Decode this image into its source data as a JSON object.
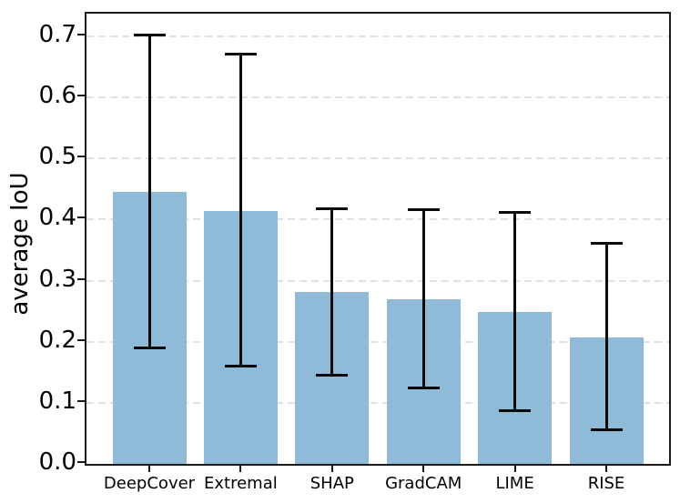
{
  "chart_data": {
    "type": "bar",
    "title": "",
    "xlabel": "",
    "ylabel": "average IoU",
    "categories": [
      "DeepCover",
      "Extremal",
      "SHAP",
      "GradCAM",
      "LIME",
      "RISE"
    ],
    "values": [
      0.445,
      0.414,
      0.281,
      0.27,
      0.249,
      0.207
    ],
    "error_low": [
      0.189,
      0.159,
      0.145,
      0.123,
      0.086,
      0.055
    ],
    "error_high": [
      0.703,
      0.671,
      0.419,
      0.417,
      0.412,
      0.362
    ],
    "y_ticks": [
      0.0,
      0.1,
      0.2,
      0.3,
      0.4,
      0.5,
      0.6,
      0.7
    ],
    "y_tick_labels": [
      "0.0",
      "0.1",
      "0.2",
      "0.3",
      "0.4",
      "0.5",
      "0.6",
      "0.7"
    ],
    "ylim": [
      0,
      0.737
    ],
    "grid": "horizontal-dashed",
    "legend": "none",
    "bar_color": "#8fbbd9",
    "error_color": "#0a0a0a",
    "grid_color": "#e1e1e1",
    "spine_color": "#1a1a1a"
  }
}
